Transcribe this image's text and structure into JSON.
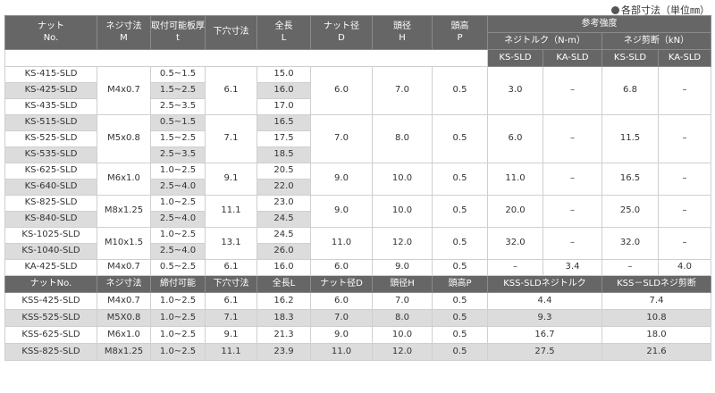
{
  "note": "各部寸法（単位㎜）",
  "header": {
    "nut": "ナット",
    "nut_en": "No.",
    "thread": "ネジ寸法",
    "thread_en": "M",
    "grip": "取付可能板厚",
    "grip_en": "t",
    "hole": "下穴寸法",
    "length": "全長",
    "length_en": "L",
    "nut_dia": "ナット径",
    "nut_dia_en": "D",
    "head_dia": "頭径",
    "head_dia_en": "H",
    "head_h": "頭高",
    "head_h_en": "P",
    "strength": "参考強度",
    "torque": "ネジトルク（N-m）",
    "shear": "ネジ剪断（kN）",
    "ks": "KS-SLD",
    "ka": "KA-SLD"
  },
  "rows": [
    {
      "no": "KS-415-SLD",
      "t": "0.5~1.5",
      "L": "15.0"
    },
    {
      "no": "KS-425-SLD",
      "t": "1.5~2.5",
      "L": "16.0"
    },
    {
      "no": "KS-435-SLD",
      "t": "2.5~3.5",
      "L": "17.0"
    },
    {
      "no": "KS-515-SLD",
      "t": "0.5~1.5",
      "L": "16.5"
    },
    {
      "no": "KS-525-SLD",
      "t": "1.5~2.5",
      "L": "17.5"
    },
    {
      "no": "KS-535-SLD",
      "t": "2.5~3.5",
      "L": "18.5"
    },
    {
      "no": "KS-625-SLD",
      "t": "1.0~2.5",
      "L": "20.5"
    },
    {
      "no": "KS-640-SLD",
      "t": "2.5~4.0",
      "L": "22.0"
    },
    {
      "no": "KS-825-SLD",
      "t": "1.0~2.5",
      "L": "23.0"
    },
    {
      "no": "KS-840-SLD",
      "t": "2.5~4.0",
      "L": "24.5"
    },
    {
      "no": "KS-1025-SLD",
      "t": "1.0~2.5",
      "L": "24.5"
    },
    {
      "no": "KS-1040-SLD",
      "t": "2.5~4.0",
      "L": "26.0"
    }
  ],
  "groups": [
    {
      "M": "M4x0.7",
      "hole": "6.1",
      "D": "6.0",
      "H": "7.0",
      "P": "0.5",
      "tq_ks": "3.0",
      "tq_ka": "–",
      "sh_ks": "6.8",
      "sh_ka": "–"
    },
    {
      "M": "M5x0.8",
      "hole": "7.1",
      "D": "7.0",
      "H": "8.0",
      "P": "0.5",
      "tq_ks": "6.0",
      "tq_ka": "–",
      "sh_ks": "11.5",
      "sh_ka": "–"
    },
    {
      "M": "M6x1.0",
      "hole": "9.1",
      "D": "9.0",
      "H": "10.0",
      "P": "0.5",
      "tq_ks": "11.0",
      "tq_ka": "–",
      "sh_ks": "16.5",
      "sh_ka": "–"
    },
    {
      "M": "M8x1.25",
      "hole": "11.1",
      "D": "9.0",
      "H": "10.0",
      "P": "0.5",
      "tq_ks": "20.0",
      "tq_ka": "–",
      "sh_ks": "25.0",
      "sh_ka": "–"
    },
    {
      "M": "M10x1.5",
      "hole": "13.1",
      "D": "11.0",
      "H": "12.0",
      "P": "0.5",
      "tq_ks": "32.0",
      "tq_ka": "–",
      "sh_ks": "32.0",
      "sh_ka": "–"
    }
  ],
  "ka_row": {
    "no": "KA-425-SLD",
    "M": "M4x0.7",
    "t": "0.5~2.5",
    "hole": "6.1",
    "L": "16.0",
    "D": "6.0",
    "H": "9.0",
    "P": "0.5",
    "tq_ks": "–",
    "tq_ka": "3.4",
    "sh_ks": "–",
    "sh_ka": "4.0"
  },
  "kss_header": {
    "no": "ナットNo.",
    "M": "ネジ寸法",
    "t": "締付可能",
    "hole": "下穴寸法",
    "L": "全長L",
    "D": "ナット径D",
    "H": "頭径H",
    "P": "頭高P",
    "torque": "KSS-SLDネジトルク",
    "shear": "KSS－SLDネジ剪断"
  },
  "kss_rows": [
    {
      "no": "KSS-425-SLD",
      "M": "M4x0.7",
      "t": "1.0~2.5",
      "hole": "6.1",
      "L": "16.2",
      "D": "6.0",
      "H": "7.0",
      "P": "0.5",
      "tq": "4.4",
      "sh": "7.4"
    },
    {
      "no": "KSS-525-SLD",
      "M": "M5X0.8",
      "t": "1.0~2.5",
      "hole": "7.1",
      "L": "18.3",
      "D": "7.0",
      "H": "8.0",
      "P": "0.5",
      "tq": "9.3",
      "sh": "10.8"
    },
    {
      "no": "KSS-625-SLD",
      "M": "M6x1.0",
      "t": "1.0~2.5",
      "hole": "9.1",
      "L": "21.3",
      "D": "9.0",
      "H": "10.0",
      "P": "0.5",
      "tq": "16.7",
      "sh": "18.0"
    },
    {
      "no": "KSS-825-SLD",
      "M": "M8x1.25",
      "t": "1.0~2.5",
      "hole": "11.1",
      "L": "23.9",
      "D": "11.0",
      "H": "12.0",
      "P": "0.5",
      "tq": "27.5",
      "sh": "21.6"
    }
  ]
}
